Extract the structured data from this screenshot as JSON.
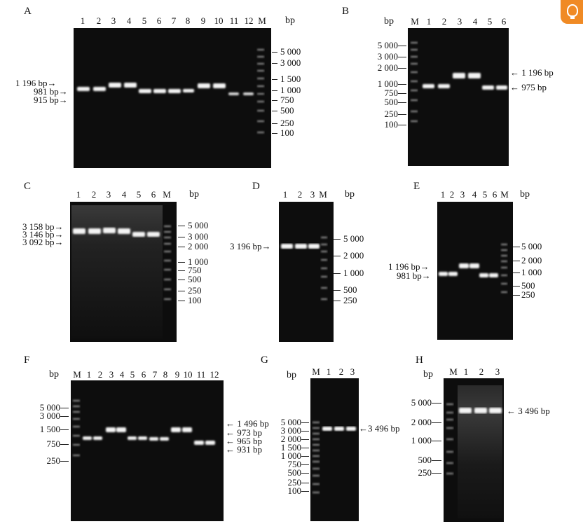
{
  "corner_icon": {
    "name": "lightbulb-icon",
    "color": "#f08a24"
  },
  "panels": [
    {
      "id": "A",
      "lanes": [
        "1",
        "2",
        "3",
        "4",
        "5",
        "6",
        "7",
        "8",
        "9",
        "10",
        "11",
        "12",
        "M"
      ],
      "bp_header": "bp",
      "marker_sizes": [
        "5 000",
        "3 000",
        "1 500",
        "1 000",
        "750",
        "500",
        "250",
        "100"
      ],
      "band_annotations": [
        "1 196 bp",
        "981 bp",
        "915 bp"
      ]
    },
    {
      "id": "B",
      "lanes": [
        "M",
        "1",
        "2",
        "3",
        "4",
        "5",
        "6"
      ],
      "bp_header": "bp",
      "marker_sizes": [
        "5 000",
        "3 000",
        "2 000",
        "1 000",
        "750",
        "500",
        "250",
        "100"
      ],
      "band_annotations": [
        "1 196 bp",
        "975 bp"
      ]
    },
    {
      "id": "C",
      "lanes": [
        "1",
        "2",
        "3",
        "4",
        "5",
        "6",
        "M"
      ],
      "bp_header": "bp",
      "marker_sizes": [
        "5 000",
        "3 000",
        "2 000",
        "1 000",
        "750",
        "500",
        "250",
        "100"
      ],
      "band_annotations": [
        "3 158 bp",
        "3 146 bp",
        "3 092 bp"
      ]
    },
    {
      "id": "D",
      "lanes": [
        "1",
        "2",
        "3",
        "M"
      ],
      "bp_header": "bp",
      "marker_sizes": [
        "5 000",
        "2 000",
        "1 000",
        "500",
        "250"
      ],
      "band_annotations": [
        "3 196 bp"
      ]
    },
    {
      "id": "E",
      "lanes": [
        "1",
        "2",
        "3",
        "4",
        "5",
        "6",
        "M"
      ],
      "bp_header": "bp",
      "marker_sizes": [
        "5 000",
        "2 000",
        "1 000",
        "500",
        "250"
      ],
      "band_annotations": [
        "1 196 bp",
        "981 bp"
      ]
    },
    {
      "id": "F",
      "lanes": [
        "M",
        "1",
        "2",
        "3",
        "4",
        "5",
        "6",
        "7",
        "8",
        "9",
        "10",
        "11",
        "12"
      ],
      "bp_header": "bp",
      "marker_sizes": [
        "5 000",
        "3 000",
        "1 500",
        "750",
        "250"
      ],
      "band_annotations": [
        "1 496 bp",
        "973 bp",
        "965 bp",
        "931 bp"
      ]
    },
    {
      "id": "G",
      "lanes": [
        "M",
        "1",
        "2",
        "3"
      ],
      "bp_header": "bp",
      "marker_sizes": [
        "5 000",
        "3 000",
        "2 000",
        "1 500",
        "1 000",
        "750",
        "500",
        "250",
        "100"
      ],
      "band_annotations": [
        "3 496 bp"
      ]
    },
    {
      "id": "H",
      "lanes": [
        "M",
        "1",
        "2",
        "3"
      ],
      "bp_header": "bp",
      "marker_sizes": [
        "5 000",
        "2 000",
        "1 000",
        "500",
        "250"
      ],
      "band_annotations": [
        "3 496 bp"
      ]
    }
  ]
}
